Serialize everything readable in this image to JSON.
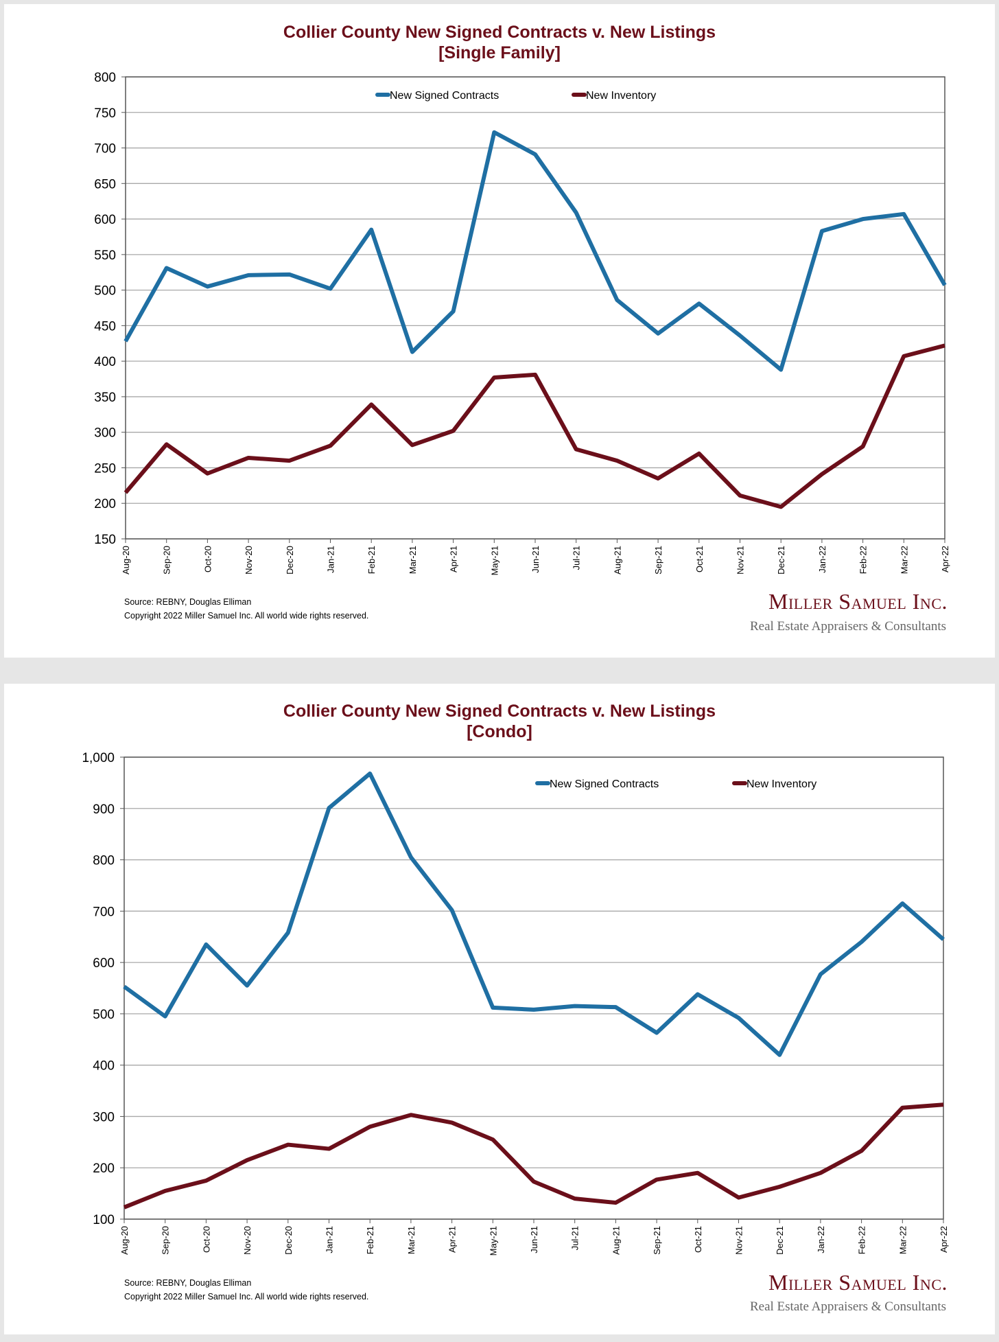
{
  "colors": {
    "contracts": "#1f6fa3",
    "inventory": "#6b0f1a",
    "grid": "#a8a8a8"
  },
  "footer": {
    "source": "Source: REBNY, Douglas Elliman",
    "copyright": "Copyright 2022 Miller Samuel Inc.  All world wide rights reserved."
  },
  "logo": {
    "name": "Miller Samuel Inc.",
    "tagline": "Real Estate Appraisers & Consultants"
  },
  "chart_data": [
    {
      "type": "line",
      "title": "Collier County New Signed Contracts v. New Listings",
      "subtitle": "[Single Family]",
      "categories": [
        "Aug-20",
        "Sep-20",
        "Oct-20",
        "Nov-20",
        "Dec-20",
        "Jan-21",
        "Feb-21",
        "Mar-21",
        "Apr-21",
        "May-21",
        "Jun-21",
        "Jul-21",
        "Aug-21",
        "Sep-21",
        "Oct-21",
        "Nov-21",
        "Dec-21",
        "Jan-22",
        "Feb-22",
        "Mar-22",
        "Apr-22"
      ],
      "ylim": [
        150,
        800
      ],
      "yticks": [
        150,
        200,
        250,
        300,
        350,
        400,
        450,
        500,
        550,
        600,
        650,
        700,
        750,
        800
      ],
      "ytick_labels": [
        "150",
        "200",
        "250",
        "300",
        "350",
        "400",
        "450",
        "500",
        "550",
        "600",
        "650",
        "700",
        "750",
        "800"
      ],
      "grid": true,
      "legend": "top-center",
      "series": [
        {
          "name": "New Signed Contracts",
          "values": [
            428,
            531,
            505,
            521,
            522,
            502,
            585,
            413,
            470,
            722,
            691,
            609,
            486,
            439,
            481,
            436,
            388,
            583,
            600,
            607,
            507
          ]
        },
        {
          "name": "New Inventory",
          "values": [
            215,
            283,
            242,
            264,
            260,
            281,
            339,
            282,
            302,
            377,
            381,
            276,
            260,
            235,
            270,
            211,
            195,
            241,
            280,
            407,
            422
          ]
        }
      ]
    },
    {
      "type": "line",
      "title": "Collier County New Signed Contracts v. New Listings",
      "subtitle": "[Condo]",
      "categories": [
        "Aug-20",
        "Sep-20",
        "Oct-20",
        "Nov-20",
        "Dec-20",
        "Jan-21",
        "Feb-21",
        "Mar-21",
        "Apr-21",
        "May-21",
        "Jun-21",
        "Jul-21",
        "Aug-21",
        "Sep-21",
        "Oct-21",
        "Nov-21",
        "Dec-21",
        "Jan-22",
        "Feb-22",
        "Mar-22",
        "Apr-22"
      ],
      "ylim": [
        100,
        1000
      ],
      "yticks": [
        100,
        200,
        300,
        400,
        500,
        600,
        700,
        800,
        900,
        1000
      ],
      "ytick_labels": [
        "100",
        "200",
        "300",
        "400",
        "500",
        "600",
        "700",
        "800",
        "900",
        "1,000"
      ],
      "grid": true,
      "legend": "top-right",
      "series": [
        {
          "name": "New Signed Contracts",
          "values": [
            553,
            495,
            635,
            555,
            658,
            901,
            968,
            805,
            702,
            512,
            508,
            515,
            513,
            463,
            538,
            492,
            420,
            577,
            640,
            715,
            645
          ]
        },
        {
          "name": "New Inventory",
          "values": [
            123,
            155,
            175,
            215,
            245,
            237,
            280,
            303,
            288,
            255,
            173,
            140,
            132,
            177,
            190,
            142,
            163,
            190,
            233,
            317,
            323
          ]
        }
      ]
    }
  ]
}
